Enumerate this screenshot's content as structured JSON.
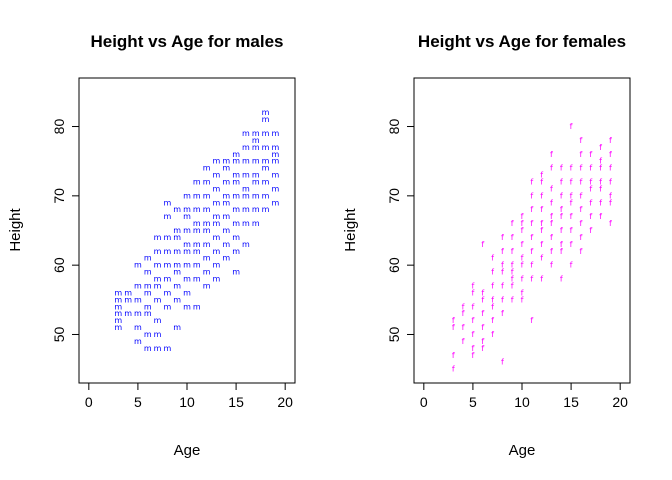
{
  "chart_data": [
    {
      "type": "scatter",
      "title": "Height vs Age for males",
      "xlabel": "Age",
      "ylabel": "Height",
      "xlim": [
        -1,
        21
      ],
      "ylim": [
        43,
        87
      ],
      "xticks": [
        0,
        5,
        10,
        15,
        20
      ],
      "yticks": [
        50,
        60,
        70,
        80
      ],
      "grid": false,
      "marker": "m",
      "color": "#0000ff",
      "points": [
        [
          3,
          51
        ],
        [
          3,
          52
        ],
        [
          3,
          53
        ],
        [
          3,
          54
        ],
        [
          3,
          55
        ],
        [
          3,
          56
        ],
        [
          4,
          53
        ],
        [
          4,
          55
        ],
        [
          4,
          56
        ],
        [
          5,
          49
        ],
        [
          5,
          51
        ],
        [
          5,
          53
        ],
        [
          5,
          55
        ],
        [
          5,
          57
        ],
        [
          5,
          60
        ],
        [
          6,
          48
        ],
        [
          6,
          50
        ],
        [
          6,
          53
        ],
        [
          6,
          54
        ],
        [
          6,
          56
        ],
        [
          6,
          57
        ],
        [
          6,
          59
        ],
        [
          6,
          61
        ],
        [
          7,
          48
        ],
        [
          7,
          50
        ],
        [
          7,
          52
        ],
        [
          7,
          55
        ],
        [
          7,
          57
        ],
        [
          7,
          58
        ],
        [
          7,
          60
        ],
        [
          7,
          62
        ],
        [
          7,
          64
        ],
        [
          8,
          48
        ],
        [
          8,
          54
        ],
        [
          8,
          56
        ],
        [
          8,
          58
        ],
        [
          8,
          60
        ],
        [
          8,
          62
        ],
        [
          8,
          64
        ],
        [
          8,
          67
        ],
        [
          8,
          69
        ],
        [
          9,
          51
        ],
        [
          9,
          55
        ],
        [
          9,
          57
        ],
        [
          9,
          59
        ],
        [
          9,
          60
        ],
        [
          9,
          62
        ],
        [
          9,
          64
        ],
        [
          9,
          65
        ],
        [
          9,
          68
        ],
        [
          10,
          54
        ],
        [
          10,
          56
        ],
        [
          10,
          58
        ],
        [
          10,
          60
        ],
        [
          10,
          62
        ],
        [
          10,
          63
        ],
        [
          10,
          65
        ],
        [
          10,
          67
        ],
        [
          10,
          68
        ],
        [
          10,
          70
        ],
        [
          11,
          54
        ],
        [
          11,
          58
        ],
        [
          11,
          60
        ],
        [
          11,
          62
        ],
        [
          11,
          63
        ],
        [
          11,
          65
        ],
        [
          11,
          66
        ],
        [
          11,
          68
        ],
        [
          11,
          70
        ],
        [
          11,
          72
        ],
        [
          12,
          57
        ],
        [
          12,
          59
        ],
        [
          12,
          61
        ],
        [
          12,
          63
        ],
        [
          12,
          65
        ],
        [
          12,
          66
        ],
        [
          12,
          68
        ],
        [
          12,
          70
        ],
        [
          12,
          72
        ],
        [
          12,
          74
        ],
        [
          13,
          58
        ],
        [
          13,
          60
        ],
        [
          13,
          62
        ],
        [
          13,
          64
        ],
        [
          13,
          66
        ],
        [
          13,
          67
        ],
        [
          13,
          69
        ],
        [
          13,
          71
        ],
        [
          13,
          73
        ],
        [
          13,
          75
        ],
        [
          14,
          61
        ],
        [
          14,
          63
        ],
        [
          14,
          65
        ],
        [
          14,
          67
        ],
        [
          14,
          69
        ],
        [
          14,
          70
        ],
        [
          14,
          72
        ],
        [
          14,
          74
        ],
        [
          14,
          75
        ],
        [
          15,
          59
        ],
        [
          15,
          62
        ],
        [
          15,
          64
        ],
        [
          15,
          66
        ],
        [
          15,
          68
        ],
        [
          15,
          70
        ],
        [
          15,
          72
        ],
        [
          15,
          73
        ],
        [
          15,
          75
        ],
        [
          15,
          76
        ],
        [
          16,
          63
        ],
        [
          16,
          66
        ],
        [
          16,
          68
        ],
        [
          16,
          70
        ],
        [
          16,
          71
        ],
        [
          16,
          73
        ],
        [
          16,
          75
        ],
        [
          16,
          77
        ],
        [
          16,
          79
        ],
        [
          17,
          66
        ],
        [
          17,
          68
        ],
        [
          17,
          70
        ],
        [
          17,
          72
        ],
        [
          17,
          73
        ],
        [
          17,
          75
        ],
        [
          17,
          77
        ],
        [
          17,
          78
        ],
        [
          17,
          79
        ],
        [
          18,
          68
        ],
        [
          18,
          70
        ],
        [
          18,
          72
        ],
        [
          18,
          74
        ],
        [
          18,
          75
        ],
        [
          18,
          77
        ],
        [
          18,
          79
        ],
        [
          18,
          81
        ],
        [
          18,
          82
        ],
        [
          19,
          69
        ],
        [
          19,
          71
        ],
        [
          19,
          73
        ],
        [
          19,
          75
        ],
        [
          19,
          76
        ],
        [
          19,
          77
        ],
        [
          19,
          79
        ]
      ]
    },
    {
      "type": "scatter",
      "title": "Height vs Age for females",
      "xlabel": "Age",
      "ylabel": "Height",
      "xlim": [
        -1,
        21
      ],
      "ylim": [
        43,
        87
      ],
      "xticks": [
        0,
        5,
        10,
        15,
        20
      ],
      "yticks": [
        50,
        60,
        70,
        80
      ],
      "grid": false,
      "marker": "f",
      "color": "#ff00ff",
      "points": [
        [
          3,
          45
        ],
        [
          3,
          47
        ],
        [
          3,
          51
        ],
        [
          3,
          52
        ],
        [
          4,
          49
        ],
        [
          4,
          51
        ],
        [
          4,
          53
        ],
        [
          4,
          54
        ],
        [
          5,
          47
        ],
        [
          5,
          48
        ],
        [
          5,
          50
        ],
        [
          5,
          52
        ],
        [
          5,
          54
        ],
        [
          5,
          56
        ],
        [
          5,
          57
        ],
        [
          6,
          48
        ],
        [
          6,
          49
        ],
        [
          6,
          51
        ],
        [
          6,
          53
        ],
        [
          6,
          55
        ],
        [
          6,
          56
        ],
        [
          6,
          63
        ],
        [
          7,
          50
        ],
        [
          7,
          52
        ],
        [
          7,
          54
        ],
        [
          7,
          55
        ],
        [
          7,
          57
        ],
        [
          7,
          59
        ],
        [
          7,
          61
        ],
        [
          8,
          46
        ],
        [
          8,
          53
        ],
        [
          8,
          55
        ],
        [
          8,
          57
        ],
        [
          8,
          59
        ],
        [
          8,
          60
        ],
        [
          8,
          62
        ],
        [
          8,
          64
        ],
        [
          9,
          55
        ],
        [
          9,
          57
        ],
        [
          9,
          58
        ],
        [
          9,
          59
        ],
        [
          9,
          60
        ],
        [
          9,
          62
        ],
        [
          9,
          64
        ],
        [
          9,
          66
        ],
        [
          10,
          55
        ],
        [
          10,
          56
        ],
        [
          10,
          58
        ],
        [
          10,
          60
        ],
        [
          10,
          61
        ],
        [
          10,
          63
        ],
        [
          10,
          65
        ],
        [
          10,
          66
        ],
        [
          10,
          67
        ],
        [
          11,
          52
        ],
        [
          11,
          58
        ],
        [
          11,
          60
        ],
        [
          11,
          62
        ],
        [
          11,
          64
        ],
        [
          11,
          66
        ],
        [
          11,
          68
        ],
        [
          11,
          70
        ],
        [
          11,
          72
        ],
        [
          12,
          58
        ],
        [
          12,
          61
        ],
        [
          12,
          63
        ],
        [
          12,
          65
        ],
        [
          12,
          66
        ],
        [
          12,
          68
        ],
        [
          12,
          70
        ],
        [
          12,
          72
        ],
        [
          12,
          73
        ],
        [
          13,
          60
        ],
        [
          13,
          62
        ],
        [
          13,
          64
        ],
        [
          13,
          66
        ],
        [
          13,
          67
        ],
        [
          13,
          69
        ],
        [
          13,
          71
        ],
        [
          13,
          74
        ],
        [
          13,
          76
        ],
        [
          14,
          58
        ],
        [
          14,
          62
        ],
        [
          14,
          63
        ],
        [
          14,
          65
        ],
        [
          14,
          67
        ],
        [
          14,
          68
        ],
        [
          14,
          70
        ],
        [
          14,
          72
        ],
        [
          14,
          74
        ],
        [
          15,
          60
        ],
        [
          15,
          63
        ],
        [
          15,
          65
        ],
        [
          15,
          67
        ],
        [
          15,
          69
        ],
        [
          15,
          70
        ],
        [
          15,
          72
        ],
        [
          15,
          74
        ],
        [
          15,
          80
        ],
        [
          16,
          62
        ],
        [
          16,
          64
        ],
        [
          16,
          66
        ],
        [
          16,
          68
        ],
        [
          16,
          70
        ],
        [
          16,
          72
        ],
        [
          16,
          74
        ],
        [
          16,
          76
        ],
        [
          16,
          78
        ],
        [
          17,
          65
        ],
        [
          17,
          67
        ],
        [
          17,
          69
        ],
        [
          17,
          71
        ],
        [
          17,
          72
        ],
        [
          17,
          74
        ],
        [
          17,
          76
        ],
        [
          18,
          67
        ],
        [
          18,
          69
        ],
        [
          18,
          71
        ],
        [
          18,
          72
        ],
        [
          18,
          74
        ],
        [
          18,
          75
        ],
        [
          18,
          77
        ],
        [
          19,
          66
        ],
        [
          19,
          69
        ],
        [
          19,
          70
        ],
        [
          19,
          72
        ],
        [
          19,
          74
        ],
        [
          19,
          76
        ],
        [
          19,
          78
        ]
      ]
    }
  ]
}
